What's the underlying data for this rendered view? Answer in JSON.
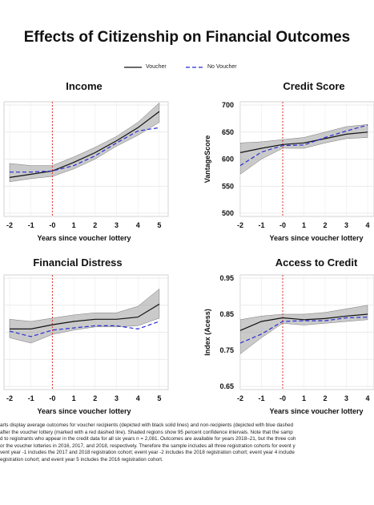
{
  "title": "Effects of Citizenship on Financial Outcomes",
  "legend": {
    "voucher_label": "Voucher",
    "no_voucher_label": "No Voucher"
  },
  "colors": {
    "voucher": "#111111",
    "no_voucher": "#2b2bd6",
    "ci_band": "#9e9e9e",
    "lottery_line": "#e03030"
  },
  "chart_data": [
    {
      "type": "line",
      "title": "Income",
      "xlabel": "Years since voucher lottery",
      "ylabel": "",
      "x": [
        "-2",
        "-1",
        "-0",
        "1",
        "2",
        "3",
        "4",
        "5"
      ],
      "yticks": [],
      "ylim": [
        0,
        10
      ],
      "grid": true,
      "series": [
        {
          "name": "Voucher",
          "style": "solid",
          "values": [
            3.3,
            3.6,
            3.9,
            4.7,
            5.6,
            6.7,
            7.9,
            9.4
          ]
        },
        {
          "name": "No Voucher",
          "style": "dashed",
          "values": [
            3.8,
            3.8,
            3.9,
            4.4,
            5.3,
            6.5,
            7.6,
            7.9
          ]
        }
      ],
      "ci_upper": [
        4.6,
        4.4,
        4.4,
        5.2,
        6.1,
        7.1,
        8.4,
        10.2
      ],
      "ci_lower": [
        2.9,
        3.2,
        3.4,
        4.1,
        5.0,
        6.2,
        7.2,
        8.4
      ],
      "y_tick_fragments": [
        "",
        "",
        ""
      ]
    },
    {
      "type": "line",
      "title": "Credit Score",
      "xlabel": "Years since voucher lottery",
      "ylabel": "VantageScore",
      "x": [
        "-2",
        "-1",
        "-0",
        "1",
        "2",
        "3",
        "4"
      ],
      "yticks": [
        "700",
        "650",
        "600",
        "550",
        "500"
      ],
      "ylim": [
        500,
        700
      ],
      "grid": true,
      "series": [
        {
          "name": "Voucher",
          "style": "solid",
          "values": [
            612,
            620,
            627,
            630,
            638,
            646,
            650
          ]
        },
        {
          "name": "No Voucher",
          "style": "dashed",
          "values": [
            588,
            613,
            625,
            626,
            640,
            652,
            663
          ]
        }
      ],
      "ci_upper": [
        630,
        632,
        636,
        640,
        650,
        660,
        664
      ],
      "ci_lower": [
        572,
        600,
        620,
        620,
        630,
        638,
        640
      ]
    },
    {
      "type": "line",
      "title": "Financial Distress",
      "xlabel": "Years since voucher lottery",
      "ylabel": "",
      "x": [
        "-2",
        "-1",
        "-0",
        "1",
        "2",
        "3",
        "4",
        "5"
      ],
      "yticks": [],
      "ylim": [
        0,
        10
      ],
      "grid": true,
      "series": [
        {
          "name": "Voucher",
          "style": "solid",
          "values": [
            5.3,
            5.3,
            5.7,
            6.0,
            6.2,
            6.2,
            6.4,
            7.6
          ]
        },
        {
          "name": "No Voucher",
          "style": "dashed",
          "values": [
            5.1,
            4.6,
            5.2,
            5.4,
            5.6,
            5.6,
            5.3,
            6.0
          ]
        }
      ],
      "ci_upper": [
        6.2,
        6.0,
        6.3,
        6.6,
        6.8,
        6.8,
        7.4,
        9.0
      ],
      "ci_lower": [
        4.5,
        4.0,
        4.8,
        5.2,
        5.5,
        5.5,
        5.6,
        6.3
      ]
    },
    {
      "type": "line",
      "title": "Access to Credit",
      "xlabel": "Years since voucher lottery",
      "ylabel": "Index (Acess)",
      "x": [
        "-2",
        "-1",
        "-0",
        "1",
        "2",
        "3",
        "4"
      ],
      "yticks": [
        "0.95",
        "0.85",
        "0.75",
        "0.65"
      ],
      "ylim": [
        0.65,
        0.95
      ],
      "grid": true,
      "series": [
        {
          "name": "Voucher",
          "style": "solid",
          "values": [
            0.805,
            0.83,
            0.84,
            0.835,
            0.838,
            0.845,
            0.85
          ]
        },
        {
          "name": "No Voucher",
          "style": "dashed",
          "values": [
            0.77,
            0.795,
            0.83,
            0.832,
            0.832,
            0.84,
            0.842
          ]
        }
      ],
      "ci_upper": [
        0.835,
        0.845,
        0.85,
        0.85,
        0.855,
        0.865,
        0.875
      ],
      "ci_lower": [
        0.74,
        0.785,
        0.825,
        0.82,
        0.825,
        0.83,
        0.835
      ]
    }
  ],
  "caption_lines": [
    "arts display average outcomes for voucher recipients (depicted with black solid lines) and non-recipients (depicted with blue dashed",
    "after the voucher lottery (marked with a red dashed line). Shaded regions show 95 percent confidence intervals. Note that the samp",
    "d to registrants who appear in the credit data for all six years n = 2,081. Outcomes are available for years 2018–21, but the three coh",
    "or the voucher lotteries in 2016, 2017, and 2018, respectively. Therefore the sample includes all three registration cohorts for event y",
    "vent year -1 includes the 2017 and 2018 registration cohort; event year -2 includes the 2018 registration cohort; event year 4 include",
    "egistration cohort; and event year 5 includes the 2016 registration cohort."
  ]
}
